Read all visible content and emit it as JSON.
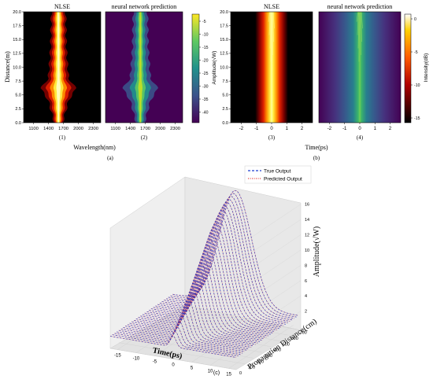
{
  "panel_a": {
    "caption": "(a)",
    "ylabel": "Distance(m)",
    "xlabel": "Wavelength(nm)",
    "plots": [
      {
        "title": "NLSE",
        "sublabel": "(1)"
      },
      {
        "title": "neural network prediction",
        "sublabel": "(2)"
      }
    ],
    "yticks": [
      "0.0",
      "2.5",
      "5.0",
      "7.5",
      "10.0",
      "12.5",
      "15.0",
      "17.5",
      "20.0"
    ],
    "xticks": [
      "1100",
      "1400",
      "1700",
      "2000",
      "2300"
    ],
    "colorbar": {
      "label": "Amplitude(√W)",
      "ticks": [
        "-5",
        "-10",
        "-15",
        "-20",
        "-25",
        "-30",
        "-35",
        "-40"
      ]
    }
  },
  "panel_b": {
    "caption": "(b)",
    "xlabel": "Time(ps)",
    "plots": [
      {
        "title": "NLSE",
        "sublabel": "(3)"
      },
      {
        "title": "neural network prediction",
        "sublabel": "(4)"
      }
    ],
    "yticks": [
      "0.0",
      "2.5",
      "5.0",
      "7.5",
      "10.0",
      "12.5",
      "15.0",
      "17.5",
      "20.0"
    ],
    "xticks": [
      "-2",
      "-1",
      "0",
      "1",
      "2"
    ],
    "colorbar": {
      "label": "Intensity(dB)",
      "ticks": [
        "0",
        "-5",
        "-10",
        "-15"
      ]
    }
  },
  "panel_c": {
    "caption": "(c)",
    "legend": [
      {
        "label": "True Output",
        "color": "#1f3fd1",
        "style": "dashed"
      },
      {
        "label": "Predicted Output",
        "color": "#e53935",
        "style": "dotted"
      }
    ],
    "xaxis": {
      "label": "Time(ps)",
      "ticks": [
        "-15",
        "-10",
        "-5",
        "0",
        "5",
        "10",
        "15"
      ]
    },
    "yaxis": {
      "label": "Propagation Distance(cm)",
      "ticks": [
        "0",
        "100",
        "200",
        "300",
        "400",
        "500",
        "600",
        "700"
      ]
    },
    "zaxis": {
      "label": "Amplitude(√W)",
      "ticks": [
        "2",
        "4",
        "6",
        "8",
        "10",
        "12",
        "14",
        "16"
      ]
    }
  },
  "chart_data": [
    {
      "type": "heatmap",
      "title": "NLSE",
      "xlabel": "Wavelength(nm)",
      "ylabel": "Distance(m)",
      "xlim": [
        900,
        2450
      ],
      "ylim": [
        0,
        20
      ],
      "colorscale": "hot",
      "center_x": 1600,
      "spectral_width_profile": [
        [
          0,
          0.1
        ],
        [
          4,
          0.3
        ],
        [
          6.2,
          0.55
        ],
        [
          8,
          0.3
        ],
        [
          11.5,
          0.25
        ],
        [
          14,
          0.22
        ],
        [
          20,
          0.2
        ]
      ]
    },
    {
      "type": "heatmap",
      "title": "neural network prediction",
      "xlabel": "Wavelength(nm)",
      "ylabel": "Distance(m)",
      "xlim": [
        900,
        2450
      ],
      "ylim": [
        0,
        20
      ],
      "colorscale": "viridis",
      "center_x": 1600,
      "spectral_width_profile": [
        [
          0,
          0.1
        ],
        [
          4,
          0.3
        ],
        [
          6.2,
          0.55
        ],
        [
          8,
          0.3
        ],
        [
          11.5,
          0.25
        ],
        [
          14,
          0.22
        ],
        [
          20,
          0.2
        ]
      ]
    },
    {
      "type": "heatmap",
      "title": "NLSE",
      "xlabel": "Time(ps)",
      "ylabel": "Distance(m)",
      "xlim": [
        -2.7,
        2.7
      ],
      "ylim": [
        0,
        20
      ],
      "colorscale": "hot",
      "pulse_halfwidth_ps": 0.75
    },
    {
      "type": "heatmap",
      "title": "neural network prediction",
      "xlabel": "Time(ps)",
      "ylabel": "Distance(m)",
      "xlim": [
        -2.7,
        2.7
      ],
      "ylim": [
        0,
        20
      ],
      "colorscale": "viridis",
      "pulse_halfwidth_ps": 0.75
    },
    {
      "type": "line",
      "title": "",
      "xlabel": "Time(ps)",
      "ylabel": "Propagation Distance(cm)",
      "zlabel": "Amplitude(√W)",
      "xlim": [
        -17,
        17
      ],
      "ylim": [
        0,
        750
      ],
      "zlim": [
        0,
        17
      ],
      "series": [
        {
          "name": "True Output"
        },
        {
          "name": "Predicted Output"
        }
      ],
      "distances": [
        0,
        25,
        50,
        75,
        100,
        125,
        150,
        175,
        200,
        225,
        250,
        275,
        300,
        325,
        350,
        375,
        400,
        425,
        450,
        475,
        500,
        525,
        550,
        575,
        600,
        625,
        650,
        675,
        700,
        725
      ],
      "peak_amplitudes": [
        3.0,
        3.4,
        3.8,
        4.3,
        4.8,
        5.3,
        5.9,
        6.5,
        7.0,
        7.6,
        8.2,
        8.8,
        9.4,
        10.0,
        10.6,
        11.2,
        11.8,
        12.4,
        13.0,
        13.6,
        14.0,
        14.4,
        14.8,
        15.2,
        15.5,
        15.8,
        16.0,
        16.2,
        16.4,
        16.6
      ],
      "pulse_halfwidth_ps": 0.8
    }
  ]
}
